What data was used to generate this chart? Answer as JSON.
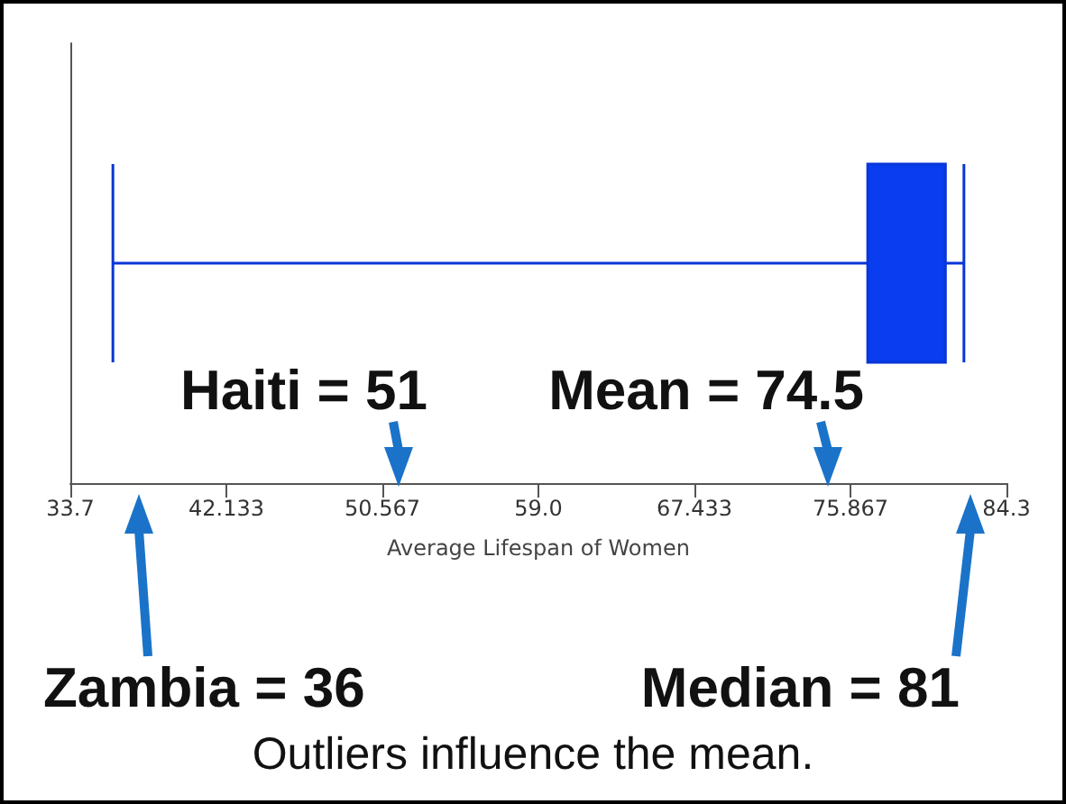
{
  "chart_data": {
    "type": "box",
    "orientation": "horizontal",
    "categories": [
      null
    ],
    "color": "#0a3cf0",
    "boxes": [
      {
        "low": 36,
        "q1": 76.8,
        "median": 81,
        "q3": 81,
        "high": 82
      }
    ],
    "xlim": [
      33.7,
      84.3
    ],
    "xticks": [
      33.7,
      42.133,
      50.567,
      {
        "value": 59,
        "label": "59.0"
      },
      67.433,
      75.867,
      84.3
    ],
    "xlabel": "Average Lifespan of Women",
    "grid": false,
    "annotations": [
      "Haiti = 51",
      "Mean = 74.5",
      "Zambia = 36",
      "Median = 81",
      "Outliers influence the mean."
    ]
  }
}
